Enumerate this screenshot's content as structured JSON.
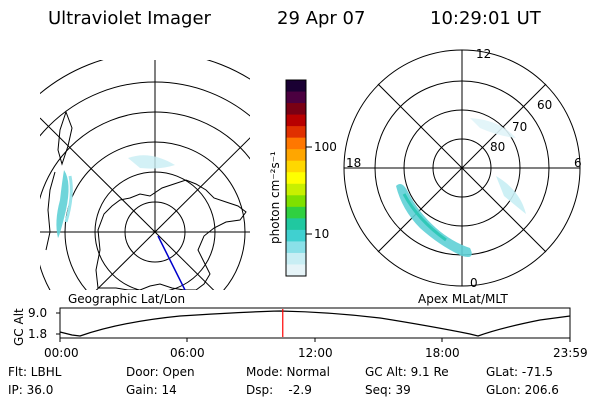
{
  "header": {
    "instrument": "Ultraviolet Imager",
    "date": "29 Apr 07",
    "time": "10:29:01 UT"
  },
  "left_map": {
    "label": "Geographic Lat/Lon"
  },
  "right_map": {
    "label": "Apex MLat/MLT",
    "mlt_labels": {
      "top": "12",
      "left": "18",
      "right": "6",
      "bottom": "0"
    },
    "lat_labels": [
      "60",
      "70",
      "80"
    ]
  },
  "colorbar": {
    "unit_label": "photon cm⁻²s⁻¹",
    "ticks": [
      "100",
      "10"
    ],
    "colors": [
      "#1a0033",
      "#4b0040",
      "#7a0014",
      "#b80000",
      "#e03000",
      "#ff7700",
      "#ffa600",
      "#ffd700",
      "#ffff00",
      "#c8f000",
      "#7fe000",
      "#30d040",
      "#20c8a0",
      "#40d0d0",
      "#8ae0e8",
      "#c8eef4",
      "#e6f4f8"
    ]
  },
  "timeline": {
    "ylabel": "GC Alt",
    "y_ticks": [
      "9.0",
      "1.8"
    ],
    "x_ticks": [
      "00:00",
      "06:00",
      "12:00",
      "18:00",
      "23:59"
    ],
    "current_time_fraction": 0.4368,
    "cursor_color": "#ff0000"
  },
  "info": {
    "flt": "Flt: LBHL",
    "ip": "IP: 36.0",
    "door": "Door: Open",
    "gain": "Gain: 14",
    "mode": "Mode: Normal",
    "dsp": "Dsp:    -2.9",
    "gcalt": "GC Alt: 9.1 Re",
    "seq": "Seq: 39",
    "glat": "GLat: -71.5",
    "glon": "GLon: 206.6"
  }
}
